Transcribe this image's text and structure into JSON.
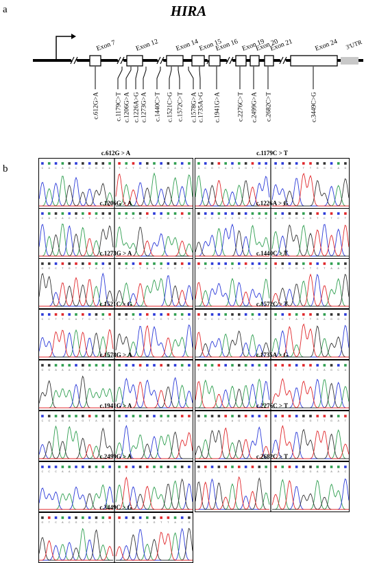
{
  "panel_a": {
    "letter": "a",
    "gene": "HIRA",
    "exons": [
      "Exon 7",
      "Exon 12",
      "Exon 14",
      "Exon 15",
      "Exon 16",
      "Exon 19",
      "Exon 20",
      "Exon 21",
      "Exon 24"
    ],
    "utr": "3'UTR",
    "variants": [
      "c.612G>A",
      "c.1179C>T",
      "c.1206G>A",
      "c.1226A>G",
      "c.1273G>A",
      "c.1440C>T",
      "c.1521C>G",
      "c.1572C>T",
      "c.1578G>A",
      "c.1735A>G",
      "c.1941G>A",
      "c.2276C>T",
      "c.2499G>A",
      "c.2682C>T",
      "c.3449C>G"
    ]
  },
  "panel_b": {
    "letter": "b",
    "chromatograms": [
      {
        "title": "c.612G > A"
      },
      {
        "title": "c.1179C > T"
      },
      {
        "title": "c.1206G > A"
      },
      {
        "title": "c.1226A > G"
      },
      {
        "title": "c.1273G > A"
      },
      {
        "title": "c.1440C > T"
      },
      {
        "title": "c.1521C > G"
      },
      {
        "title": "c.1572C > T"
      },
      {
        "title": "c.1578G > A"
      },
      {
        "title": "c.1735A > G"
      },
      {
        "title": "c.1941G > A"
      },
      {
        "title": "c.2276C > T"
      },
      {
        "title": "c.2499G > A"
      },
      {
        "title": "c.2682C > T"
      },
      {
        "title": "c.3449C > G"
      }
    ],
    "trace_colors": {
      "A": "#2e9e4f",
      "C": "#2a39d8",
      "G": "#333333",
      "T": "#e0262a"
    }
  }
}
